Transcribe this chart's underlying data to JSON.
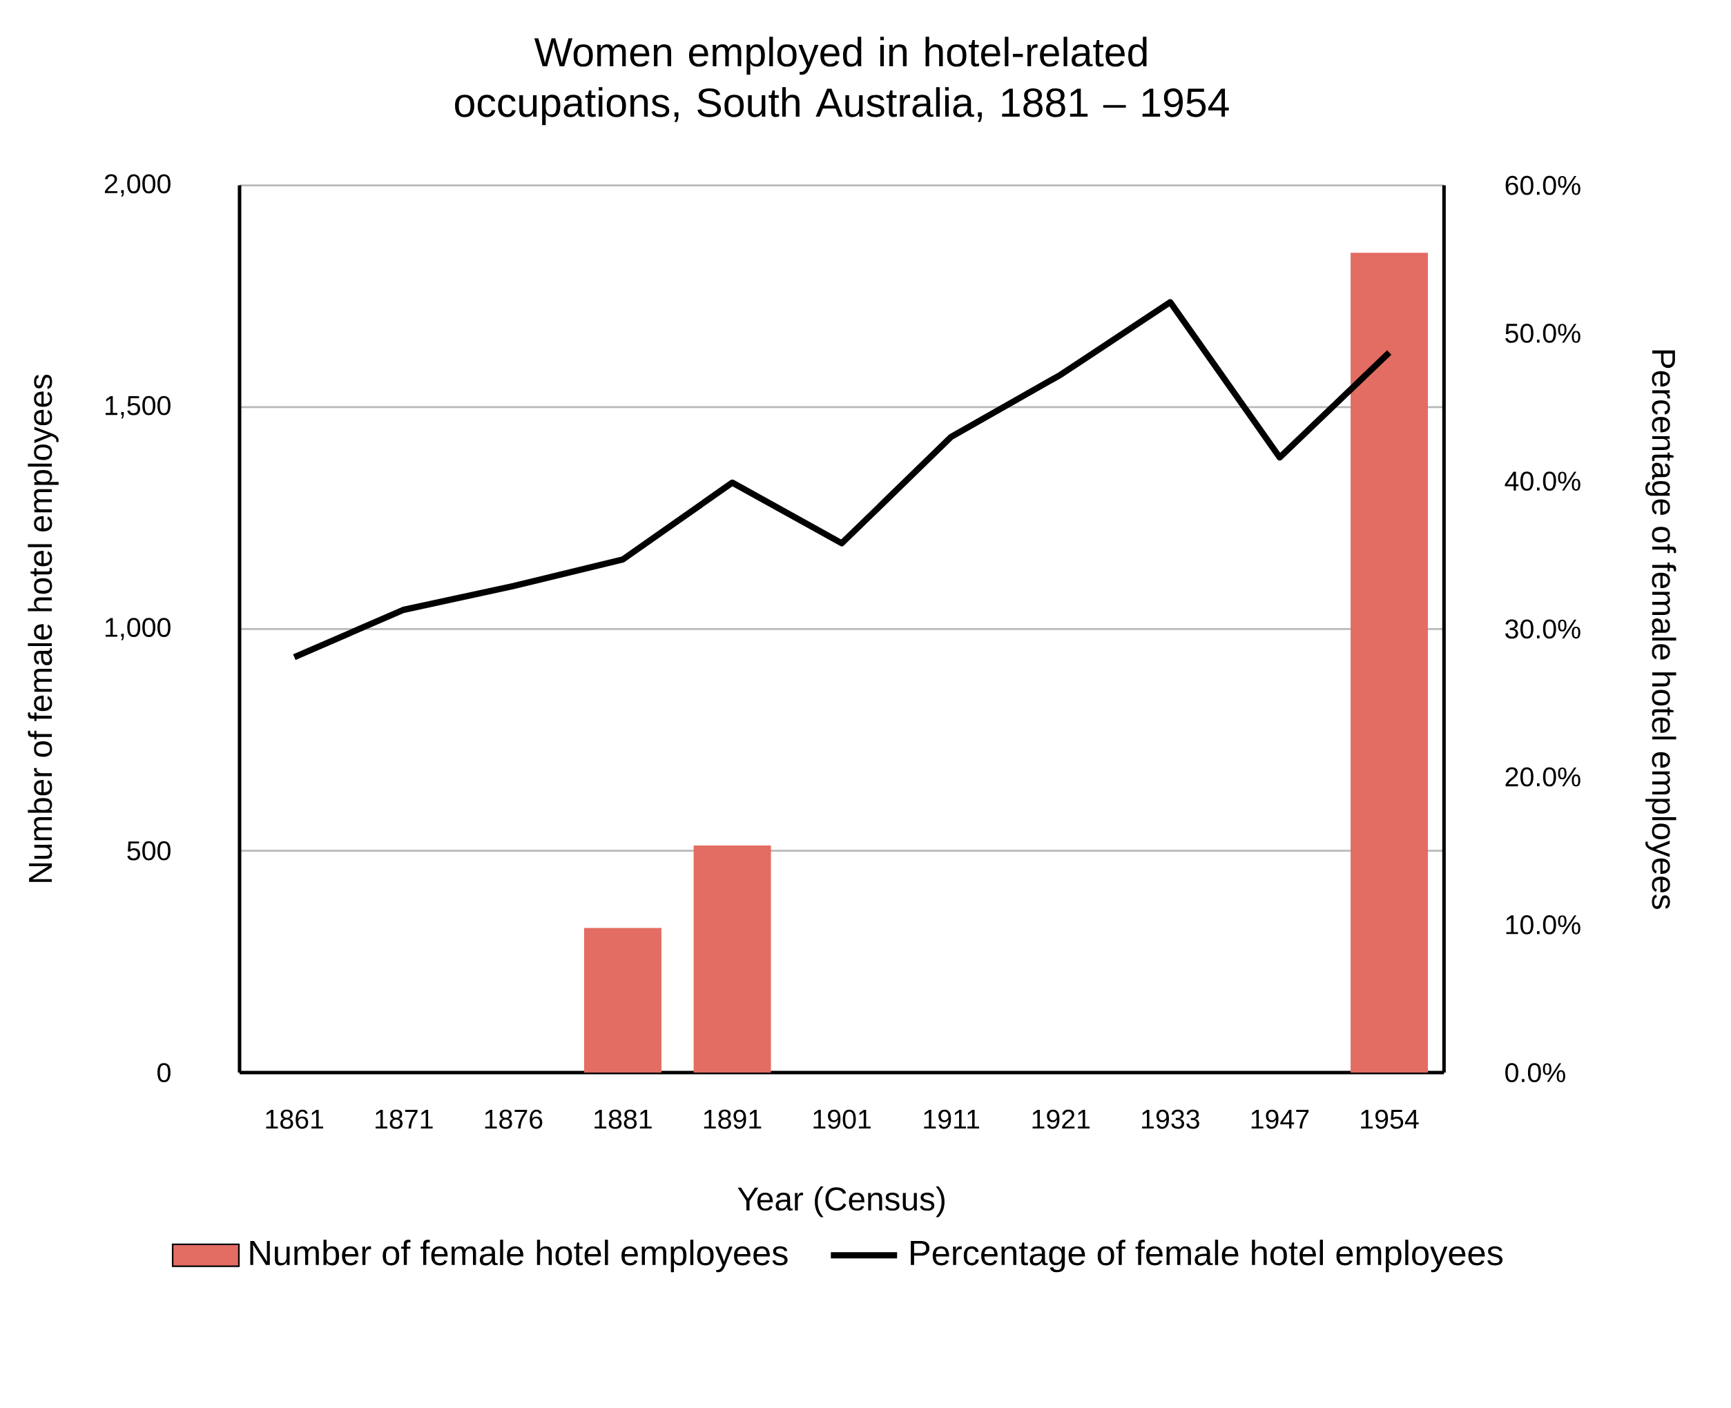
{
  "chart_data": {
    "type": "bar",
    "title": "Women employed in hotel-related occupations, South Australia, 1881 – 1954",
    "xlabel": "Year (Census)",
    "ylabel": "Number of female hotel employees",
    "y2label": "Percentage of female hotel employees",
    "categories": [
      "1861",
      "1871",
      "1876",
      "1881",
      "1891",
      "1901",
      "1911",
      "1921",
      "1933",
      "1947",
      "1954"
    ],
    "series": [
      {
        "name": "Number of female hotel employees",
        "color": "#e36c63",
        "values": [
          null,
          null,
          null,
          326,
          512,
          null,
          null,
          null,
          null,
          null,
          1848
        ]
      },
      {
        "name": "Percentage of female hotel employees",
        "type": "line",
        "axis": "y2",
        "color": "#000000",
        "values": [
          28.1,
          31.3,
          32.9,
          34.7,
          39.9,
          35.8,
          43.0,
          47.2,
          52.1,
          41.6,
          48.7
        ]
      }
    ],
    "ylim": [
      0,
      2000
    ],
    "yticks": [
      0,
      500,
      {
        "value": 1000,
        "label": "1,000"
      },
      {
        "value": 1500,
        "label": "1,500"
      },
      {
        "value": 2000,
        "label": "2,000"
      }
    ],
    "y2lim": [
      0,
      60
    ],
    "y2ticks": [
      {
        "value": 0,
        "label": "0.0%"
      },
      {
        "value": 10,
        "label": "10.0%"
      },
      {
        "value": 20,
        "label": "20.0%"
      },
      {
        "value": 30,
        "label": "30.0%"
      },
      {
        "value": 40,
        "label": "40.0%"
      },
      {
        "value": 50,
        "label": "50.0%"
      },
      {
        "value": 60,
        "label": "60.0%"
      }
    ],
    "grid": "y",
    "legend": "bottom"
  }
}
